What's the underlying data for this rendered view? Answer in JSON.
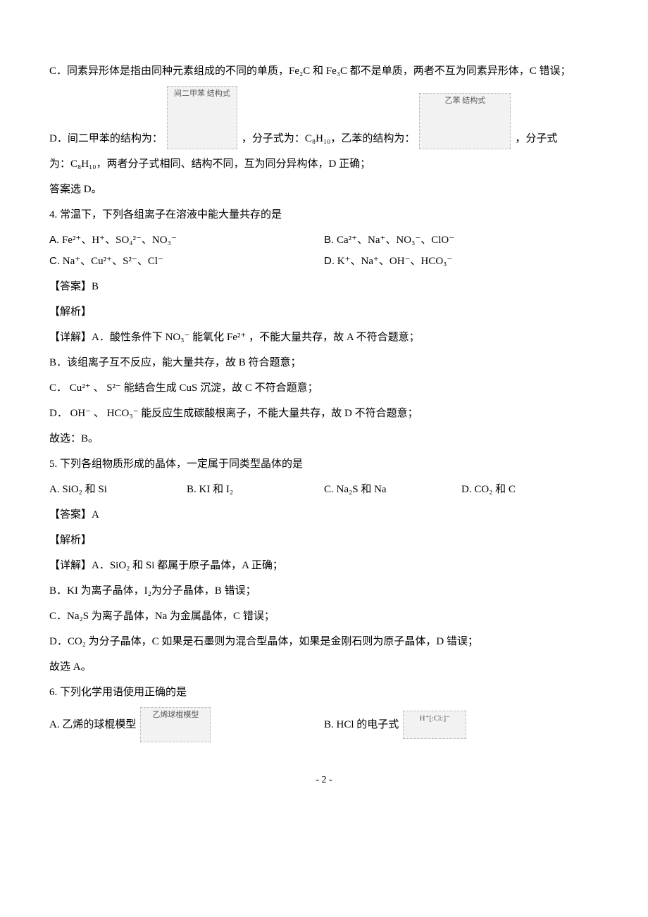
{
  "q3": {
    "C": "C．同素异形体是指由同种元素组成的不同的单质，Fe₂C 和 Fe₃C 都不是单质，两者不互为同素异形体，C 错误；",
    "D_pre": "D．间二甲苯的结构为：",
    "D_img1_alt": "间二甲苯 结构式",
    "D_mid1": "，分子式为：C₈H₁₀，乙苯的结构为：",
    "D_img2_alt": "乙苯 结构式",
    "D_mid2": "，分子式",
    "D_line2": "为：C₈H₁₀，两者分子式相同、结构不同，互为同分异构体，D 正确；",
    "D_end": "答案选 D。"
  },
  "q4": {
    "stem": "4. 常温下，下列各组离子在溶液中能大量共存的是",
    "A_label": "A.",
    "A": "Fe²⁺、H⁺、SO₄²⁻、NO₃⁻",
    "B_label": "B.",
    "B": "Ca²⁺、Na⁺、NO₃⁻、ClO⁻",
    "C_label": "C.",
    "C": "Na⁺、Cu²⁺、S²⁻、Cl⁻",
    "D_label": "D.",
    "D": "K⁺、Na⁺、OH⁻、HCO₃⁻",
    "ans": "【答案】B",
    "jx": "【解析】",
    "detA_pre": "【详解】A．酸性条件下",
    "detA_no3": "NO₃⁻",
    "detA_mid": "能氧化",
    "detA_fe": "Fe²⁺",
    "detA_post": "，不能大量共存，故 A 不符合题意；",
    "detB": "B．该组离子互不反应，能大量共存，故 B 符合题意；",
    "detC_pre": "C．",
    "detC_cu": "Cu²⁺",
    "detC_sep": "、",
    "detC_s2": "S²⁻",
    "detC_post": "能结合生成 CuS 沉淀，故 C 不符合题意；",
    "detD_pre": "D．",
    "detD_oh": "OH⁻",
    "detD_sep": "、",
    "detD_hco3": "HCO₃⁻",
    "detD_post": "能反应生成碳酸根离子，不能大量共存，故 D 不符合题意；",
    "final": "故选：B。"
  },
  "q5": {
    "stem": "5. 下列各组物质形成的晶体，一定属于同类型晶体的是",
    "A": "A.  SiO₂ 和 Si",
    "B": "B.  KI 和 I₂",
    "C": "C.  Na₂S 和 Na",
    "D": "D.  CO₂ 和 C",
    "ans": "【答案】A",
    "jx": "【解析】",
    "detA": "【详解】A．SiO₂ 和 Si 都属于原子晶体，A 正确；",
    "detB": "B．KI 为离子晶体，I₂为分子晶体，B 错误；",
    "detC": "C．Na₂S 为离子晶体，Na 为金属晶体，C 错误；",
    "detD": "D．CO₂ 为分子晶体，C 如果是石墨则为混合型晶体，如果是金刚石则为原子晶体，D 错误；",
    "final": "故选 A。"
  },
  "q6": {
    "stem": "6. 下列化学用语使用正确的是",
    "A_text": "A.  乙烯的球棍模型",
    "A_img_alt": "乙烯球棍模型",
    "B_text": "B.  HCl 的电子式",
    "B_img_alt": "H⁺[:Cl:]⁻"
  },
  "page_num": "- 2 -"
}
